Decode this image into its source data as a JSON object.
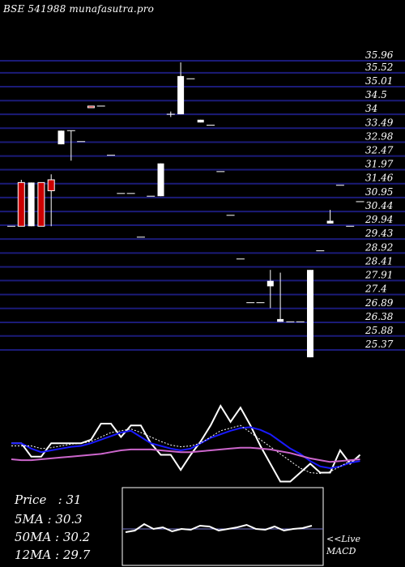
{
  "title": "BSE 541988 munafasutra.pro",
  "stats": {
    "price": "Price   : 31",
    "ma5": "5MA : 30.3",
    "ma50": "50MA : 30.2",
    "ma12": "12MA : 29.7"
  },
  "live_label": "<<Live",
  "macd_label": "MACD",
  "colors": {
    "background": "#000000",
    "gridline": "#1b1b78",
    "bull": "#ffffff",
    "bear": "#cc0000",
    "ma_blue": "#1a1aff",
    "ma_magenta": "#cc66cc",
    "price_line": "#ffffff",
    "macd_border": "#ffffff"
  },
  "chart_data": [
    {
      "type": "candlestick",
      "yaxis": "right",
      "grid": true,
      "y_ticks": [
        35.96,
        35.52,
        35.01,
        34.5,
        34,
        33.49,
        32.98,
        32.47,
        31.97,
        31.46,
        30.95,
        30.44,
        29.94,
        29.43,
        28.92,
        28.41,
        27.91,
        27.4,
        26.89,
        26.38,
        25.88,
        25.37
      ],
      "candles": [
        {
          "o": 29.9,
          "h": 29.9,
          "l": 29.9,
          "c": 29.9,
          "color": "neutral"
        },
        {
          "o": 31.5,
          "h": 31.6,
          "l": 29.9,
          "c": 29.9,
          "color": "bear"
        },
        {
          "o": 31.5,
          "h": 31.5,
          "l": 29.9,
          "c": 29.9,
          "color": "bull"
        },
        {
          "o": 31.5,
          "h": 31.5,
          "l": 29.9,
          "c": 29.9,
          "color": "bear"
        },
        {
          "o": 31.2,
          "h": 31.8,
          "l": 29.9,
          "c": 31.6,
          "color": "bear"
        },
        {
          "o": 32.9,
          "h": 33.4,
          "l": 32.9,
          "c": 33.4,
          "color": "bull"
        },
        {
          "o": 33.4,
          "h": 33.4,
          "l": 32.3,
          "c": 33.4,
          "color": "neutral"
        },
        {
          "o": 33.0,
          "h": 33.0,
          "l": 33.0,
          "c": 33.0,
          "color": "neutral"
        },
        {
          "o": 34.3,
          "h": 34.3,
          "l": 34.3,
          "c": 34.3,
          "color": "bear"
        },
        {
          "o": 34.3,
          "h": 34.3,
          "l": 34.3,
          "c": 34.3,
          "color": "neutral"
        },
        {
          "o": 32.5,
          "h": 32.5,
          "l": 32.5,
          "c": 32.5,
          "color": "neutral"
        },
        {
          "o": 31.1,
          "h": 31.1,
          "l": 31.1,
          "c": 31.1,
          "color": "neutral"
        },
        {
          "o": 31.1,
          "h": 31.1,
          "l": 31.1,
          "c": 31.1,
          "color": "neutral"
        },
        {
          "o": 29.5,
          "h": 29.5,
          "l": 29.5,
          "c": 29.5,
          "color": "neutral"
        },
        {
          "o": 31.0,
          "h": 31.0,
          "l": 31.0,
          "c": 31.0,
          "color": "neutral"
        },
        {
          "o": 31.0,
          "h": 32.2,
          "l": 31.0,
          "c": 32.2,
          "color": "bull"
        },
        {
          "o": 34.0,
          "h": 34.1,
          "l": 33.9,
          "c": 34.0,
          "color": "neutral"
        },
        {
          "o": 34.0,
          "h": 35.9,
          "l": 34.0,
          "c": 35.4,
          "color": "bull"
        },
        {
          "o": 35.3,
          "h": 35.3,
          "l": 35.3,
          "c": 35.3,
          "color": "neutral"
        },
        {
          "o": 33.7,
          "h": 33.8,
          "l": 33.7,
          "c": 33.8,
          "color": "bull"
        },
        {
          "o": 33.6,
          "h": 33.6,
          "l": 33.6,
          "c": 33.6,
          "color": "neutral"
        },
        {
          "o": 31.9,
          "h": 31.9,
          "l": 31.9,
          "c": 31.9,
          "color": "neutral"
        },
        {
          "o": 30.3,
          "h": 30.3,
          "l": 30.3,
          "c": 30.3,
          "color": "neutral"
        },
        {
          "o": 28.7,
          "h": 28.7,
          "l": 28.7,
          "c": 28.7,
          "color": "neutral"
        },
        {
          "o": 27.1,
          "h": 27.1,
          "l": 27.1,
          "c": 27.1,
          "color": "neutral"
        },
        {
          "o": 27.1,
          "h": 27.1,
          "l": 27.1,
          "c": 27.1,
          "color": "neutral"
        },
        {
          "o": 27.7,
          "h": 28.3,
          "l": 26.9,
          "c": 27.9,
          "color": "bull"
        },
        {
          "o": 26.4,
          "h": 28.2,
          "l": 26.4,
          "c": 26.5,
          "color": "bull"
        },
        {
          "o": 26.4,
          "h": 26.4,
          "l": 26.4,
          "c": 26.4,
          "color": "neutral"
        },
        {
          "o": 26.4,
          "h": 26.4,
          "l": 26.4,
          "c": 26.4,
          "color": "neutral"
        },
        {
          "o": 25.1,
          "h": 28.3,
          "l": 25.1,
          "c": 28.3,
          "color": "bull"
        },
        {
          "o": 29.0,
          "h": 29.0,
          "l": 29.0,
          "c": 29.0,
          "color": "neutral"
        },
        {
          "o": 30.1,
          "h": 30.5,
          "l": 30.0,
          "c": 30.0,
          "color": "bull"
        },
        {
          "o": 31.4,
          "h": 31.4,
          "l": 31.4,
          "c": 31.4,
          "color": "neutral"
        },
        {
          "o": 29.9,
          "h": 29.9,
          "l": 29.9,
          "c": 29.9,
          "color": "neutral"
        },
        {
          "o": 30.8,
          "h": 30.8,
          "l": 30.8,
          "c": 30.8,
          "color": "neutral"
        }
      ]
    },
    {
      "type": "line",
      "series": [
        {
          "color": "white",
          "values": [
            48,
            48,
            33,
            33,
            48,
            48,
            48,
            48,
            52,
            70,
            70,
            55,
            68,
            68,
            48,
            35,
            35,
            18,
            35,
            50,
            68,
            90,
            72,
            88,
            68,
            45,
            25,
            5,
            5,
            15,
            25,
            15,
            15,
            40,
            25,
            35
          ]
        },
        {
          "color": "blue",
          "values": [
            48,
            48,
            42,
            38,
            40,
            42,
            44,
            45,
            48,
            52,
            56,
            60,
            62,
            55,
            48,
            45,
            42,
            40,
            42,
            48,
            54,
            58,
            62,
            65,
            66,
            63,
            58,
            50,
            42,
            36,
            28,
            22,
            20,
            22,
            26,
            28
          ]
        },
        {
          "color": "black",
          "values": [
            45,
            45,
            45,
            42,
            43,
            45,
            47,
            48,
            50,
            55,
            60,
            62,
            64,
            60,
            55,
            50,
            46,
            44,
            45,
            48,
            55,
            62,
            65,
            68,
            60,
            52,
            44,
            36,
            28,
            20,
            15,
            14,
            16,
            22,
            28,
            33
          ]
        },
        {
          "color": "magenta",
          "values": [
            30,
            29,
            29,
            30,
            31,
            32,
            33,
            34,
            35,
            36,
            38,
            40,
            41,
            41,
            41,
            40,
            39,
            38,
            38,
            39,
            40,
            41,
            42,
            43,
            43,
            42,
            41,
            39,
            37,
            34,
            31,
            29,
            27,
            28,
            29,
            30
          ]
        }
      ]
    }
  ]
}
